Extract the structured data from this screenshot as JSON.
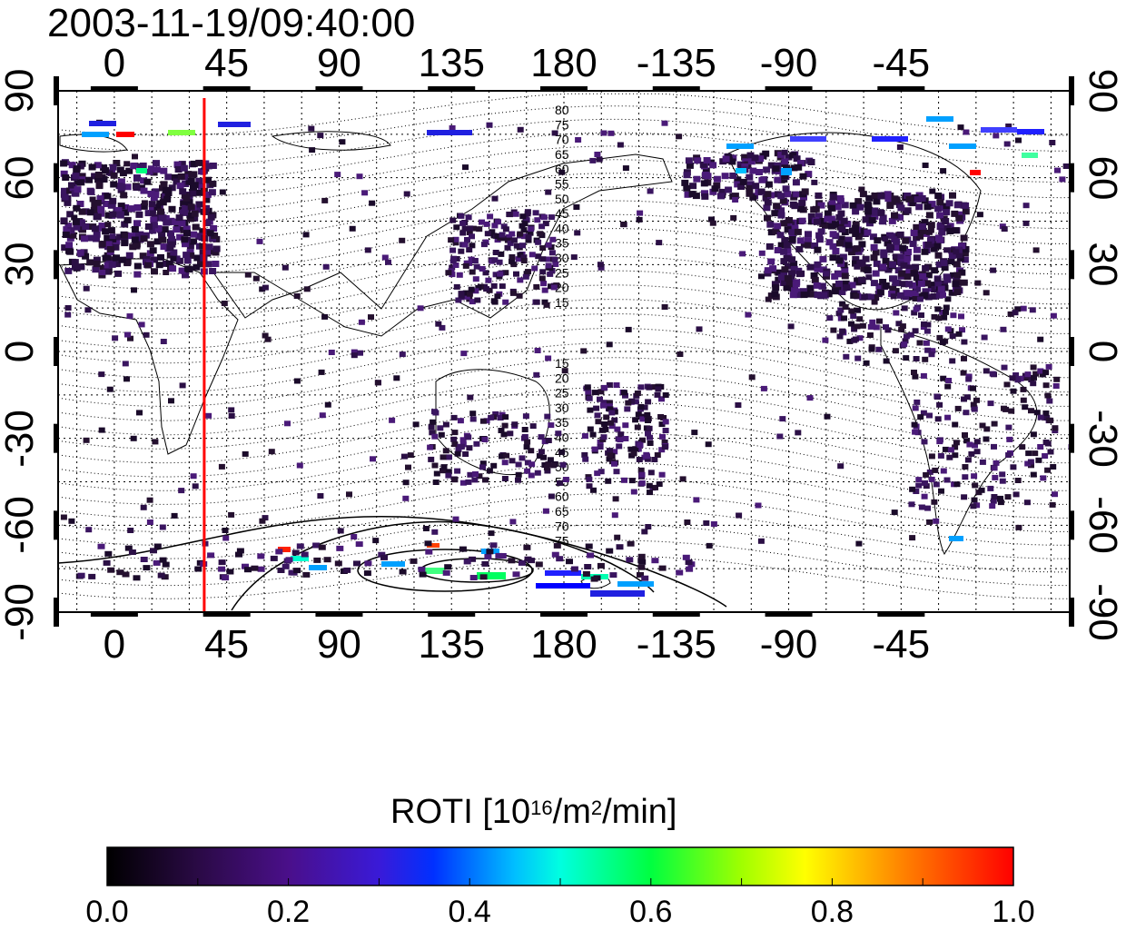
{
  "title": "2003-11-19/09:40:00",
  "map": {
    "x_ticks_bottom": [
      "0",
      "45",
      "90",
      "135",
      "180",
      "-135",
      "-90",
      "-45"
    ],
    "x_ticks_top": [
      "0",
      "45",
      "90",
      "135",
      "180",
      "-135",
      "-90",
      "-45"
    ],
    "y_ticks_left": [
      "90",
      "60",
      "30",
      "0",
      "-30",
      "-60",
      "-90"
    ],
    "y_ticks_right": [
      "90",
      "60",
      "30",
      "0",
      "-30",
      "-60",
      "-90"
    ],
    "x_tick_values": [
      0,
      45,
      90,
      135,
      180,
      225,
      270,
      315
    ],
    "y_tick_values": [
      90,
      60,
      30,
      0,
      -30,
      -60,
      -90
    ],
    "longitude_range": [
      -22.5,
      382.5
    ],
    "latitude_range": [
      -90,
      90
    ],
    "grid": true,
    "marker_line_longitude": 36,
    "marker_line_color": "#ff0000",
    "contour_labels_north": [
      "80",
      "75",
      "70",
      "65",
      "60",
      "55",
      "50",
      "45",
      "40",
      "35",
      "30",
      "25",
      "20",
      "15"
    ],
    "contour_labels_south": [
      "15",
      "20",
      "25",
      "30",
      "35",
      "40",
      "45",
      "50",
      "55",
      "60",
      "65",
      "70",
      "75"
    ]
  },
  "colorbar": {
    "label": "ROTI  [10",
    "label_sup1": "16",
    "label_mid": "/m",
    "label_sup2": "2",
    "label_end": "/min]",
    "ticks": [
      "0.0",
      "0.2",
      "0.4",
      "0.6",
      "0.8",
      "1.0"
    ],
    "range": [
      0.0,
      1.0
    ],
    "colors": [
      "#000000",
      "#3a0a5e",
      "#5a12a8",
      "#0000ff",
      "#00a0ff",
      "#00ffff",
      "#00ff60",
      "#80ff00",
      "#ffff00",
      "#ff8000",
      "#ff0000"
    ]
  }
}
